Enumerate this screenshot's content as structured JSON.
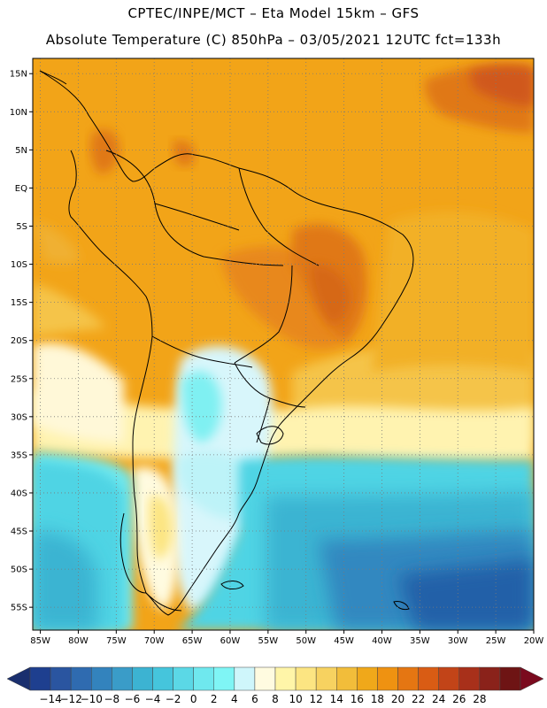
{
  "header": {
    "line1": "CPTEC/INPE/MCT –  Eta Model 15km – GFS",
    "line2": "Absolute Temperature (C) 850hPa – 03/05/2021 12UTC fct=133h"
  },
  "map": {
    "lat_labels": [
      "15N",
      "10N",
      "5N",
      "EQ",
      "5S",
      "10S",
      "15S",
      "20S",
      "25S",
      "30S",
      "35S",
      "40S",
      "45S",
      "50S",
      "55S"
    ],
    "lon_labels": [
      "85W",
      "80W",
      "75W",
      "70W",
      "65W",
      "60W",
      "55W",
      "50W",
      "45W",
      "40W",
      "35W",
      "30W",
      "25W",
      "20W"
    ],
    "lat_range": [
      17,
      -58
    ],
    "lon_range": [
      -86,
      -20
    ],
    "grid": "dotted",
    "colors": {
      "warm_base": "#f2a418",
      "hot": "#e07818",
      "very_hot": "#d0581a",
      "mild": "#f5c44a",
      "cool": "#fff8d8",
      "cold": "#4fd4e4",
      "colder": "#3ab4d2",
      "coldest": "#2060a8",
      "coastline": "#000000"
    }
  },
  "colorbar": {
    "labels": [
      "-14",
      "-12",
      "-10",
      "-8",
      "-6",
      "-4",
      "-2",
      "0",
      "2",
      "4",
      "6",
      "8",
      "10",
      "12",
      "14",
      "16",
      "18",
      "20",
      "22",
      "24",
      "26",
      "28"
    ],
    "colors": [
      "#1e3f8f",
      "#2a55a0",
      "#2f6bb0",
      "#3383bd",
      "#3a9cc8",
      "#3cb3d2",
      "#45c5dc",
      "#5bd8e6",
      "#6fe8ee",
      "#7ff5f5",
      "#cff6fb",
      "#fffbe0",
      "#fff5a8",
      "#fce582",
      "#f7d260",
      "#f2bd3a",
      "#f0a81a",
      "#ef9211",
      "#e57612",
      "#d95c14",
      "#c24418",
      "#a8301a",
      "#8a221a",
      "#6e1414"
    ],
    "under_color": "#1a2f6e",
    "over_color": "#7a0a1e"
  }
}
